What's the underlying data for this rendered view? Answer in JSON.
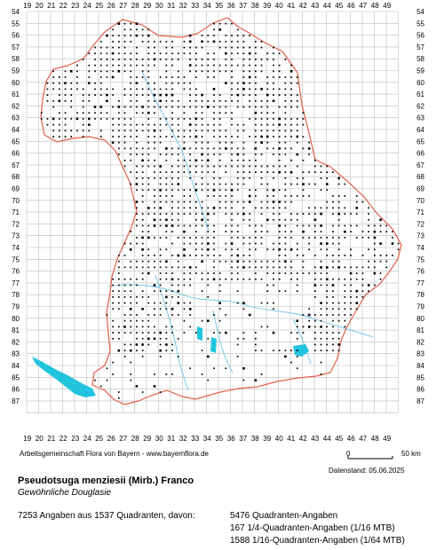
{
  "grid": {
    "x_labels": [
      "19",
      "20",
      "21",
      "22",
      "23",
      "24",
      "25",
      "26",
      "27",
      "28",
      "29",
      "30",
      "31",
      "32",
      "33",
      "34",
      "35",
      "36",
      "37",
      "38",
      "39",
      "40",
      "41",
      "42",
      "43",
      "44",
      "45",
      "46",
      "47",
      "48",
      "49"
    ],
    "y_labels": [
      "54",
      "55",
      "56",
      "57",
      "58",
      "59",
      "60",
      "61",
      "62",
      "63",
      "64",
      "65",
      "66",
      "67",
      "68",
      "69",
      "70",
      "71",
      "72",
      "73",
      "74",
      "75",
      "76",
      "77",
      "78",
      "79",
      "80",
      "81",
      "82",
      "83",
      "84",
      "85",
      "86",
      "87"
    ]
  },
  "colors": {
    "grid": "#bdbdbd",
    "border": "#e2604a",
    "river": "#6ec3ea",
    "lake": "#22c4dd",
    "dot": "#000000"
  },
  "footer": {
    "credit": "Arbeitsgemeinschaft Flora von Bayern - www.bayernflora.de",
    "scale_start": "0",
    "scale_end": "50 km",
    "date": "Datenstand: 05.06.2025",
    "species_name": "Pseudotsuga menziesii (Mirb.) Franco",
    "common_name": "Gewöhnliche Douglasie",
    "summary": "7253 Angaben aus 1537 Quadranten, davon:",
    "stat_1": "5476 Quadranten-Angaben",
    "stat_2": "167 1/4-Quadranten-Angaben (1/16 MTB)",
    "stat_3": "1588 1/16-Quadranten-Angaben (1/64 MTB)"
  }
}
